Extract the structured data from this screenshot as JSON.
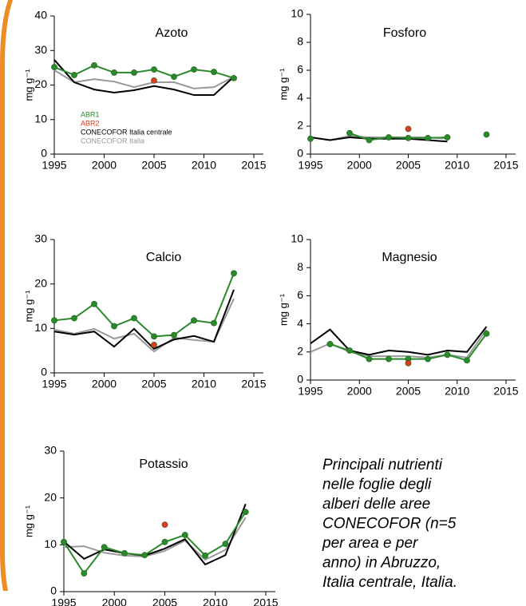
{
  "chart_data": [
    {
      "type": "line",
      "title": "Azoto",
      "ylabel": "mg g⁻¹",
      "legend": true,
      "x": [
        1995,
        1997,
        1999,
        2001,
        2003,
        2005,
        2007,
        2009,
        2011,
        2013
      ],
      "xlim": [
        1995,
        2015
      ],
      "xticks": [
        1995,
        2000,
        2005,
        2010,
        2015
      ],
      "ylim": [
        0,
        40
      ],
      "yticks": [
        0,
        10,
        20,
        30,
        40
      ],
      "series": [
        {
          "name": "CONECOFOR Italia",
          "color": "#999999",
          "markers": false,
          "line": true,
          "values": [
            24.3,
            20.8,
            21.7,
            21,
            19.4,
            20.8,
            20.8,
            19,
            19.4,
            22.4
          ]
        },
        {
          "name": "CONECOFOR Italia centrale",
          "color": "#000000",
          "markers": false,
          "line": true,
          "values": [
            27.3,
            20.8,
            18.7,
            17.8,
            18.5,
            19.7,
            18.7,
            17.1,
            17.1,
            22.4
          ]
        },
        {
          "name": "ABR1",
          "color": "#2a8a2a",
          "markers": true,
          "line": true,
          "values": [
            25.2,
            22.9,
            25.7,
            23.6,
            23.6,
            24.5,
            22.4,
            24.5,
            23.8,
            22
          ]
        },
        {
          "name": "ABR2",
          "color": "#e03a20",
          "markers": true,
          "line": false,
          "values": [
            null,
            null,
            null,
            null,
            null,
            21.3,
            null,
            null,
            null,
            null
          ]
        }
      ]
    },
    {
      "type": "line",
      "title": "Fosforo",
      "ylabel": "mg g⁻¹",
      "legend": false,
      "x": [
        1995,
        1997,
        1999,
        2001,
        2003,
        2005,
        2007,
        2009,
        2011,
        2013
      ],
      "xlim": [
        1995,
        2015
      ],
      "xticks": [
        1995,
        2000,
        2005,
        2010,
        2015
      ],
      "ylim": [
        0,
        10
      ],
      "yticks": [
        0,
        2,
        4,
        6,
        8,
        10
      ],
      "series": [
        {
          "name": "CONECOFOR Italia",
          "color": "#999999",
          "markers": false,
          "line": true,
          "values": [
            1.2,
            1.0,
            1.3,
            1.2,
            1.2,
            1.2,
            1.2,
            1.1,
            null,
            null
          ]
        },
        {
          "name": "CONECOFOR Italia centrale",
          "color": "#000000",
          "markers": false,
          "line": true,
          "values": [
            1.2,
            1.0,
            1.2,
            1.1,
            1.1,
            1.1,
            1.0,
            0.9,
            null,
            null
          ]
        },
        {
          "name": "ABR1",
          "color": "#2a8a2a",
          "markers": true,
          "line": true,
          "values": [
            1.1,
            null,
            1.5,
            1.0,
            1.2,
            1.15,
            1.15,
            1.2,
            null,
            1.4
          ]
        },
        {
          "name": "ABR2",
          "color": "#e03a20",
          "markers": true,
          "line": false,
          "values": [
            null,
            null,
            null,
            null,
            null,
            1.8,
            null,
            null,
            null,
            null
          ]
        }
      ]
    },
    {
      "type": "line",
      "title": "Calcio",
      "ylabel": "mg g⁻¹",
      "legend": false,
      "x": [
        1995,
        1997,
        1999,
        2001,
        2003,
        2005,
        2007,
        2009,
        2011,
        2013
      ],
      "xlim": [
        1995,
        2015
      ],
      "xticks": [
        1995,
        2000,
        2005,
        2010,
        2015
      ],
      "ylim": [
        0,
        30
      ],
      "yticks": [
        0,
        10,
        20,
        30
      ],
      "series": [
        {
          "name": "CONECOFOR Italia",
          "color": "#999999",
          "markers": false,
          "line": true,
          "values": [
            9.7,
            8.8,
            9.9,
            7.7,
            8.8,
            4.8,
            7.9,
            7.4,
            7.0,
            16.7
          ]
        },
        {
          "name": "CONECOFOR Italia centrale",
          "color": "#000000",
          "markers": false,
          "line": true,
          "values": [
            9.3,
            8.6,
            9.3,
            5.9,
            9.9,
            5.4,
            7.5,
            8.3,
            7.0,
            18.7
          ]
        },
        {
          "name": "ABR1",
          "color": "#2a8a2a",
          "markers": true,
          "line": true,
          "values": [
            11.8,
            12.3,
            15.5,
            10.5,
            12.3,
            8.2,
            8.5,
            11.8,
            11.2,
            22.4
          ]
        },
        {
          "name": "ABR2",
          "color": "#e03a20",
          "markers": true,
          "line": false,
          "values": [
            null,
            null,
            null,
            null,
            null,
            6.3,
            null,
            null,
            null,
            null
          ]
        }
      ]
    },
    {
      "type": "line",
      "title": "Magnesio",
      "ylabel": "mg g⁻¹",
      "legend": false,
      "x": [
        1995,
        1997,
        1999,
        2001,
        2003,
        2005,
        2007,
        2009,
        2011,
        2013
      ],
      "xlim": [
        1995,
        2015
      ],
      "xticks": [
        1995,
        2000,
        2005,
        2010,
        2015
      ],
      "ylim": [
        0,
        10
      ],
      "yticks": [
        0,
        2,
        4,
        6,
        8,
        10
      ],
      "series": [
        {
          "name": "CONECOFOR Italia",
          "color": "#999999",
          "markers": false,
          "line": true,
          "values": [
            2.0,
            2.6,
            2.0,
            1.7,
            1.7,
            1.7,
            1.6,
            1.8,
            1.6,
            3.6
          ]
        },
        {
          "name": "CONECOFOR Italia centrale",
          "color": "#000000",
          "markers": false,
          "line": true,
          "values": [
            2.6,
            3.6,
            2.1,
            1.8,
            2.1,
            2.0,
            1.8,
            2.1,
            2.0,
            3.8
          ]
        },
        {
          "name": "ABR1",
          "color": "#2a8a2a",
          "markers": true,
          "line": true,
          "values": [
            null,
            2.56,
            2.1,
            1.5,
            1.5,
            1.5,
            1.5,
            1.8,
            1.4,
            3.3
          ]
        },
        {
          "name": "ABR2",
          "color": "#e03a20",
          "markers": true,
          "line": false,
          "values": [
            null,
            null,
            null,
            null,
            null,
            1.2,
            null,
            null,
            null,
            null
          ]
        }
      ]
    },
    {
      "type": "line",
      "title": "Potassio",
      "ylabel": "mg g⁻¹",
      "legend": false,
      "x": [
        1995,
        1997,
        1999,
        2001,
        2003,
        2005,
        2007,
        2009,
        2011,
        2013
      ],
      "xlim": [
        1995,
        2015
      ],
      "xticks": [
        1995,
        2000,
        2005,
        2010,
        2015
      ],
      "ylim": [
        0,
        30
      ],
      "yticks": [
        0,
        10,
        20,
        30
      ],
      "series": [
        {
          "name": "CONECOFOR Italia",
          "color": "#999999",
          "markers": false,
          "line": true,
          "values": [
            9.5,
            9.7,
            8.3,
            7.7,
            7.5,
            8.7,
            10.9,
            6.8,
            8.9,
            15.8
          ]
        },
        {
          "name": "CONECOFOR Italia centrale",
          "color": "#000000",
          "markers": false,
          "line": true,
          "values": [
            10.7,
            7,
            9,
            8.2,
            7.7,
            9.2,
            11.2,
            5.8,
            7.8,
            18.7
          ]
        },
        {
          "name": "ABR1",
          "color": "#2a8a2a",
          "markers": true,
          "line": true,
          "values": [
            10.6,
            3.9,
            9.5,
            8.2,
            7.8,
            10.6,
            12.1,
            7.7,
            10.2,
            17.0
          ]
        },
        {
          "name": "ABR2",
          "color": "#e03a20",
          "markers": true,
          "line": false,
          "values": [
            null,
            null,
            null,
            null,
            null,
            14.3,
            null,
            null,
            null,
            null
          ]
        }
      ]
    }
  ],
  "caption": [
    "Principali nutrienti",
    "nelle foglie degli",
    "alberi delle aree",
    "CONECOFOR (n=5",
    "per area e per",
    "anno) in Abruzzo,",
    "Italia centrale, Italia."
  ]
}
